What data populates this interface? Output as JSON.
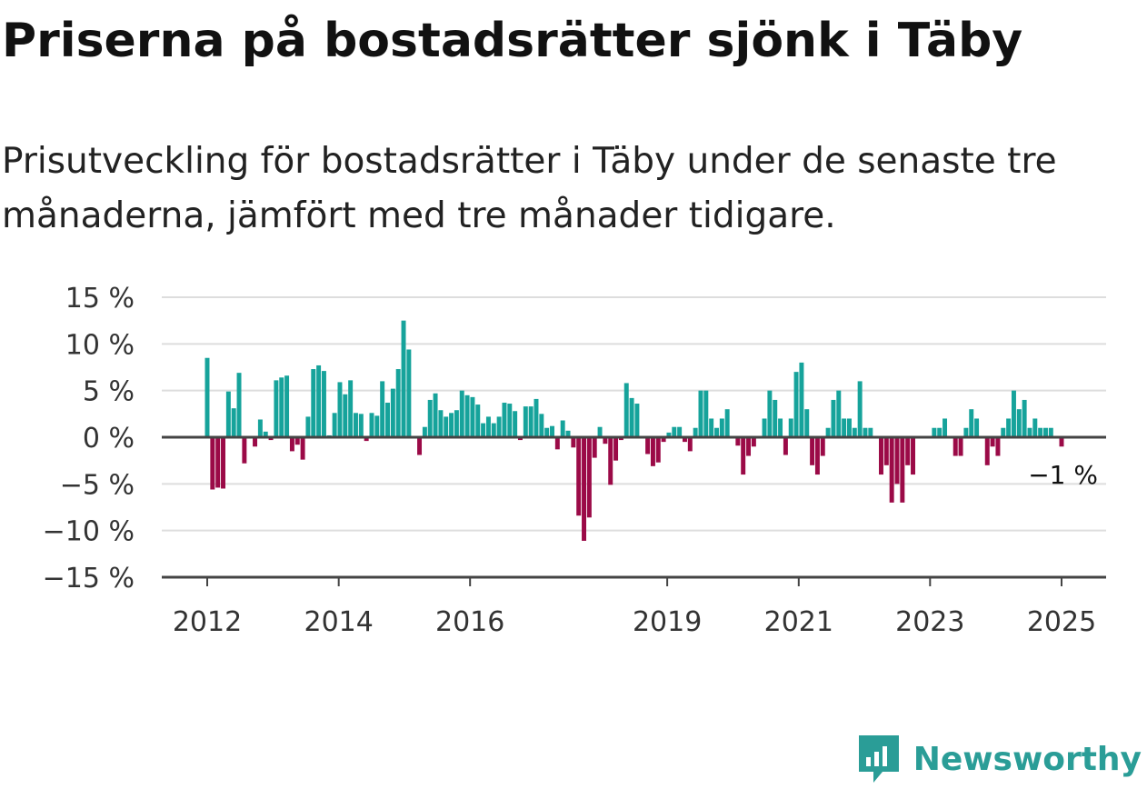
{
  "title": "Priserna på bostadsrätter sjönk i Täby",
  "subtitle": "Prisutveckling för bostadsrätter i Täby under de senaste tre månaderna, jämfört med tre månader tidigare.",
  "brand": "Newsworthy",
  "colors": {
    "positive": "#16a39b",
    "negative": "#9b0a47",
    "grid": "#dddddd",
    "axis": "#444444",
    "brand": "#2a9d97"
  },
  "chart_data": {
    "type": "bar",
    "title": "Priserna på bostadsrätter sjönk i Täby",
    "subtitle": "Prisutveckling för bostadsrätter i Täby under de senaste tre månaderna, jämfört med tre månader tidigare.",
    "xlabel": "",
    "ylabel": "",
    "y_unit": "%",
    "ylim": [
      -15,
      15
    ],
    "y_ticks": [
      15,
      10,
      5,
      0,
      -5,
      -10,
      -15
    ],
    "y_tick_labels": [
      "15 %",
      "10 %",
      "5 %",
      "0 %",
      "−5 %",
      "−10 %",
      "−15 %"
    ],
    "x_ticks": [
      "2012",
      "2014",
      "2016",
      "2019",
      "2021",
      "2023",
      "2025"
    ],
    "grid": true,
    "last_label": "−1 %",
    "x_start": "2012-01",
    "x_end": "2025-01",
    "values": [
      8.5,
      -5.6,
      -5.4,
      -5.5,
      4.9,
      3.1,
      6.9,
      -2.8,
      0,
      -1,
      1.9,
      0.6,
      -0.3,
      6.1,
      6.4,
      6.6,
      -1.5,
      -0.8,
      -2.4,
      2.2,
      7.3,
      7.7,
      7.1,
      0.2,
      2.6,
      5.9,
      4.6,
      6.1,
      2.6,
      2.5,
      -0.4,
      2.6,
      2.3,
      6.0,
      3.7,
      5.2,
      7.3,
      12.5,
      9.4,
      0,
      -1.9,
      1.1,
      4.0,
      4.7,
      2.9,
      2.2,
      2.6,
      2.9,
      5.0,
      4.5,
      4.3,
      3.5,
      1.5,
      2.2,
      1.5,
      2.2,
      3.7,
      3.6,
      2.8,
      -0.3,
      3.3,
      3.3,
      4.1,
      2.5,
      1.0,
      1.2,
      -1.3,
      1.8,
      0.7,
      -1.1,
      -8.4,
      -11.1,
      -8.6,
      -2.2,
      1.1,
      -0.7,
      -5.1,
      -2.5,
      -0.3,
      5.8,
      4.2,
      3.6,
      0,
      -1.8,
      -3.1,
      -2.7,
      -0.5,
      0.5,
      1.1,
      1.1,
      -0.5,
      -1.5,
      1.0,
      5.0,
      5.0,
      2.0,
      1.0,
      2.0,
      3.0,
      0,
      -0.9,
      -4.0,
      -2.0,
      -1.0,
      0,
      2.0,
      5.0,
      4.0,
      2.0,
      -1.9,
      2.0,
      7.0,
      8.0,
      3.0,
      -3.0,
      -4.0,
      -2.0,
      1.0,
      4.0,
      5.0,
      2.0,
      2.0,
      1.0,
      6.0,
      1.0,
      1.0,
      0,
      -4.0,
      -3.0,
      -7.0,
      -5.0,
      -7.0,
      -3.0,
      -4.0,
      0,
      0,
      0,
      1.0,
      1.0,
      2.0,
      0,
      -2.0,
      -2.0,
      1.0,
      3.0,
      2.0,
      0,
      -3.0,
      -1.0,
      -2.0,
      1.0,
      2.0,
      5.0,
      3.0,
      4.0,
      1.0,
      2.0,
      1.0,
      1.0,
      1.0,
      0,
      -1.0
    ]
  }
}
